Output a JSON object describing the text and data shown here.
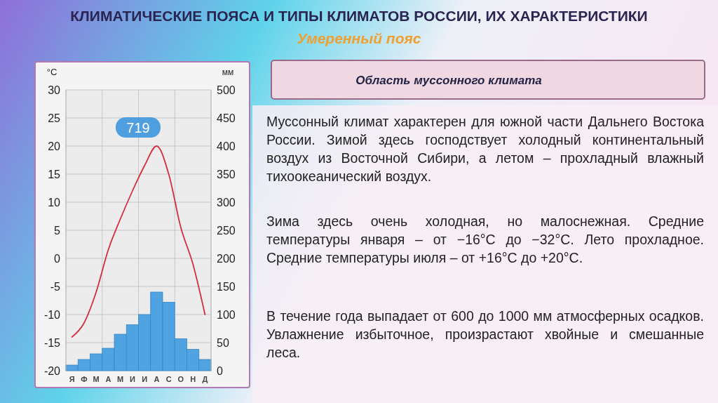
{
  "chart_data": {
    "type": "bar",
    "title": "КЛИМАТИЧЕСКИЕ ПОЯСА И ТИПЫ КЛИМАТОВ РОССИИ, ИХ ХАРАКТЕРИСТИКИ",
    "subtitle": "Умеренный пояс",
    "ylabel": "°C",
    "y2label": "мм",
    "categories": [
      "Я",
      "Ф",
      "М",
      "А",
      "М",
      "И",
      "И",
      "А",
      "С",
      "О",
      "Н",
      "Д"
    ],
    "series": [
      {
        "axis": "y2",
        "color": "#4fa3e0",
        "values": [
          10,
          20,
          30,
          40,
          65,
          82,
          100,
          140,
          122,
          57,
          38,
          20
        ]
      },
      {
        "type": "line",
        "axis": "y",
        "color": "#d42e3c",
        "values": [
          -14,
          -11.5,
          -6,
          1.5,
          7,
          12,
          16.5,
          20,
          15,
          5.5,
          -1,
          -10
        ]
      }
    ],
    "ylim": [
      -20,
      30
    ],
    "yticks": [
      -20,
      -15,
      -10,
      -5,
      0,
      5,
      10,
      15,
      20,
      25,
      30
    ],
    "y2lim": [
      0,
      500
    ],
    "y2ticks": [
      0,
      50,
      100,
      150,
      200,
      250,
      300,
      350,
      400,
      450,
      500
    ],
    "grid": true,
    "annotations": [
      "719",
      "Область муссонного климата",
      "Муссонный климат характерен для южной части Дальнего Востока России. Зимой здесь господствует холодный континентальный воздух из Восточной Сибири, а летом – прохладный влажный тихоокеанический воздух.",
      "Зима здесь очень холодная, но малоснежная. Средние температуры января – от −16°C до −32°C. Лето прохладное. Средние температуры июля – от +16°C до +20°C.",
      "В течение года выпадает от 600 до 1000 мм атмосферных осадков. Увлажнение избыточное, произрастают хвойные и смешанные леса."
    ]
  }
}
